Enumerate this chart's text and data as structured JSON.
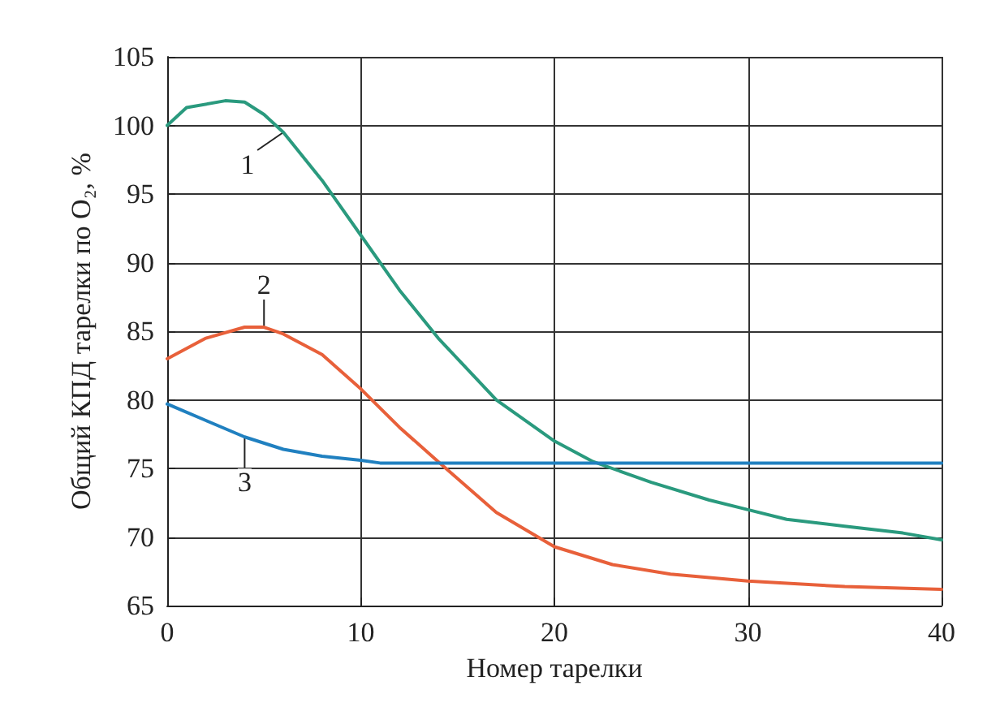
{
  "chart_data": {
    "type": "line",
    "xlabel": "Номер тарелки",
    "ylabel": "Общий КПД тарелки по O₂, %",
    "xlim": [
      0,
      40
    ],
    "xticks": [
      0,
      10,
      20,
      30,
      40
    ],
    "ylim": [
      65,
      105
    ],
    "yticks": [
      65,
      70,
      75,
      80,
      85,
      90,
      95,
      100,
      105
    ],
    "grid": true,
    "marker": "none",
    "line_style": "solid",
    "series": [
      {
        "color": "#2a9a7e",
        "x": [
          0,
          1,
          3,
          4,
          5,
          6,
          8,
          10,
          12,
          14,
          17,
          20,
          22,
          25,
          28,
          30,
          32,
          35,
          38,
          40
        ],
        "values": [
          100,
          101.3,
          101.8,
          101.7,
          100.8,
          99.5,
          96,
          92,
          88,
          84.5,
          80,
          77,
          75.5,
          74,
          72.7,
          72,
          71.3,
          70.8,
          70.3,
          69.8
        ]
      },
      {
        "color": "#e8603a",
        "x": [
          0,
          2,
          4,
          5,
          6,
          8,
          10,
          12,
          14,
          17,
          20,
          23,
          26,
          30,
          35,
          40
        ],
        "values": [
          83,
          84.5,
          85.3,
          85.3,
          84.8,
          83.3,
          80.8,
          78,
          75.5,
          71.8,
          69.3,
          68,
          67.3,
          66.8,
          66.4,
          66.2
        ]
      },
      {
        "color": "#2080c0",
        "x": [
          0,
          2,
          4,
          6,
          8,
          10,
          11,
          40
        ],
        "values": [
          79.7,
          78.5,
          77.3,
          76.4,
          75.9,
          75.6,
          75.4,
          75.4
        ]
      }
    ],
    "annotations": [
      {
        "text": "1",
        "x": 6,
        "y": 99.5
      },
      {
        "text": "2",
        "x": 5,
        "y": 85.3
      },
      {
        "text": "3",
        "x": 4,
        "y": 77.3
      }
    ]
  }
}
